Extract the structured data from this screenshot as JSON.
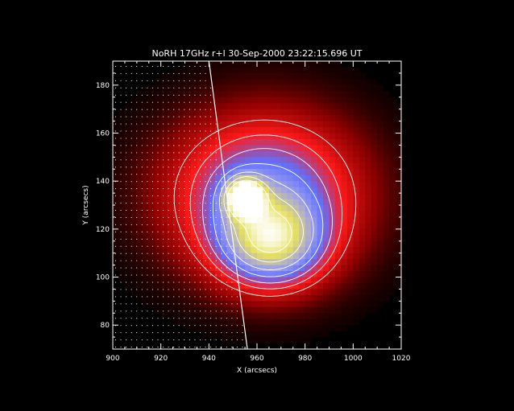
{
  "chart_data": {
    "type": "heatmap",
    "title": "NoRH 17GHz r+l 30-Sep-2000 23:22:15.696 UT",
    "xlabel": "X (arcsecs)",
    "ylabel": "Y (arcsecs)",
    "xlim": [
      900,
      1020
    ],
    "ylim": [
      70,
      190
    ],
    "x_ticks": [
      "900",
      "920",
      "940",
      "960",
      "980",
      "1000",
      "1020"
    ],
    "y_ticks": [
      "80",
      "100",
      "120",
      "140",
      "160",
      "180"
    ],
    "grid": false,
    "colormap": [
      "#000000",
      "#8b0000",
      "#ff1a1a",
      "#6070ff",
      "#9fa0e8",
      "#e6e060",
      "#ffffff"
    ],
    "limb_line": {
      "x_top": 940,
      "x_bottom": 956
    },
    "sources": [
      {
        "x": 955,
        "y": 133,
        "peak": 1.0,
        "sx": 5,
        "sy": 5
      },
      {
        "x": 966,
        "y": 115,
        "peak": 0.62,
        "sx": 14,
        "sy": 12
      },
      {
        "x": 963,
        "y": 134,
        "peak": 0.5,
        "sx": 26,
        "sy": 22
      }
    ],
    "contour_levels": [
      0.18,
      0.26,
      0.34,
      0.44,
      0.56,
      0.7,
      0.85
    ]
  }
}
